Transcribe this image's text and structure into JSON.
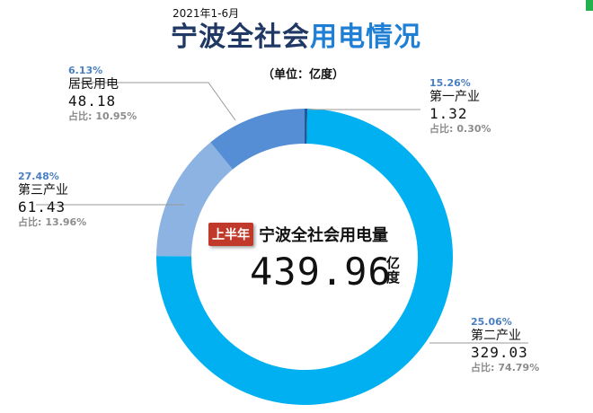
{
  "header": {
    "pre_title": "2021年1-6月",
    "title_part1": "宁波全社会",
    "title_part2": "用电情况",
    "unit": "（单位：亿度）"
  },
  "center": {
    "badge": "上半年",
    "title": "宁波全社会用电量",
    "total": "439.96",
    "unit": "亿度"
  },
  "share_prefix": "占比:",
  "chart_data": {
    "type": "pie",
    "variant": "donut",
    "unit": "亿度",
    "total": 439.96,
    "series": [
      {
        "name": "第一产业",
        "value": 1.32,
        "share": "0.30%",
        "pct": "15.26%",
        "color": "#1f5b99"
      },
      {
        "name": "第二产业",
        "value": 329.03,
        "share": "74.79%",
        "pct": "25.06%",
        "color": "#00b0f0"
      },
      {
        "name": "第三产业",
        "value": 61.43,
        "share": "13.96%",
        "pct": "27.48%",
        "color": "#8db3e2"
      },
      {
        "name": "居民用电",
        "value": 48.18,
        "share": "10.95%",
        "pct": "6.13%",
        "color": "#558ed5"
      }
    ],
    "values_text": [
      "1.32",
      "329.03",
      "61.43",
      "48.18"
    ]
  }
}
